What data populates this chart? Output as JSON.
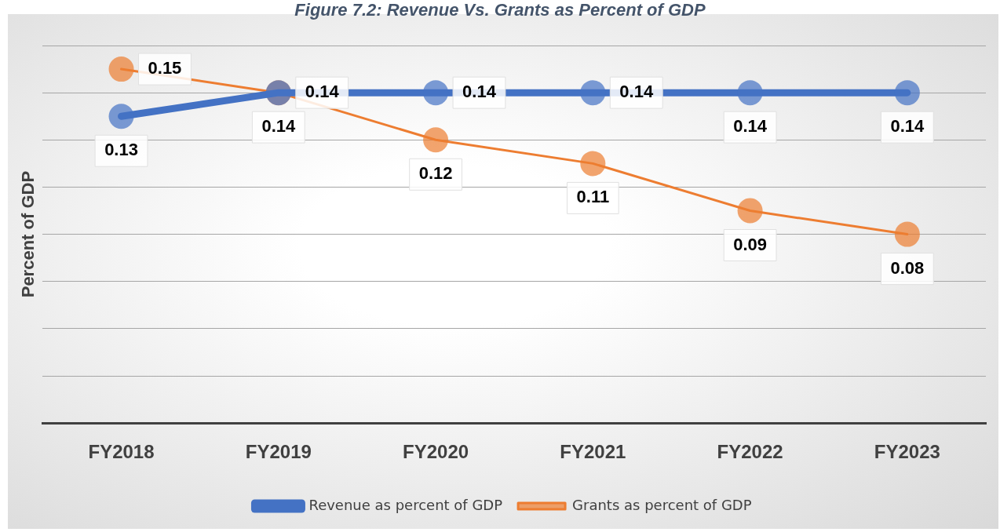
{
  "chart_data": {
    "type": "line",
    "title": "Figure 7.2: Revenue Vs. Grants as Percent of GDP",
    "ylabel": "Percent of GDP",
    "categories": [
      "FY2018",
      "FY2019",
      "FY2020",
      "FY2021",
      "FY2022",
      "FY2023"
    ],
    "series": [
      {
        "name": "Revenue as percent of GDP",
        "color": "#4472c4",
        "values": [
          0.13,
          0.14,
          0.14,
          0.14,
          0.14,
          0.14
        ]
      },
      {
        "name": "Grants as percent of GDP",
        "color": "#ed7d31",
        "values": [
          0.15,
          0.14,
          0.12,
          0.11,
          0.09,
          0.08
        ]
      }
    ],
    "ylim": [
      0,
      0.16
    ],
    "yticks": [
      {
        "value": 0,
        "label": null
      },
      {
        "value": 0.02,
        "label": null
      },
      {
        "value": 0.04,
        "label": null
      },
      {
        "value": 0.06,
        "label": null
      },
      {
        "value": 0.08,
        "label": null
      },
      {
        "value": 0.1,
        "label": null
      },
      {
        "value": 0.12,
        "label": null
      },
      {
        "value": 0.14,
        "label": null
      },
      {
        "value": 0.16,
        "label": null
      }
    ],
    "tick_labels": "x",
    "grid": "y",
    "legend": "bottom",
    "marker": "circle",
    "line_style": "solid",
    "data_labels": true
  }
}
